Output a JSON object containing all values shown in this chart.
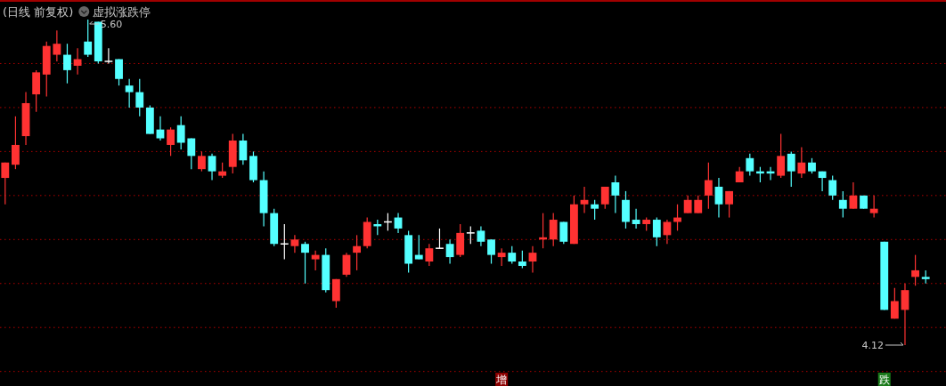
{
  "chart_data": {
    "type": "candlestick",
    "title": "(日线 前复权)",
    "subtitle": "虚拟涨跌停",
    "categories": [
      null,
      null,
      null,
      null,
      null,
      null,
      null,
      null,
      null,
      null,
      null,
      null,
      null,
      null,
      null,
      null,
      null,
      null,
      null,
      null,
      null,
      null,
      null,
      null,
      null,
      null,
      null,
      null,
      null,
      null,
      null,
      null,
      null,
      null,
      null,
      null,
      null,
      null,
      null,
      null,
      null,
      null,
      null,
      null,
      null,
      null,
      null,
      null,
      null,
      null,
      null,
      null,
      null,
      null,
      null,
      null,
      null,
      null,
      null,
      null,
      null,
      null,
      null,
      null,
      null,
      null,
      null,
      null,
      null,
      null,
      null,
      null,
      null,
      null,
      null,
      null,
      null,
      null,
      null,
      null,
      null,
      null,
      null,
      null,
      null,
      null,
      null,
      null,
      null,
      null
    ],
    "ohlc": [
      [
        4.88,
        4.95,
        4.76,
        4.95
      ],
      [
        4.94,
        5.16,
        4.92,
        5.03
      ],
      [
        5.07,
        5.27,
        5.03,
        5.22
      ],
      [
        5.26,
        5.37,
        5.18,
        5.36
      ],
      [
        5.35,
        5.5,
        5.25,
        5.48
      ],
      [
        5.44,
        5.55,
        5.41,
        5.49
      ],
      [
        5.44,
        5.49,
        5.31,
        5.37
      ],
      [
        5.39,
        5.47,
        5.35,
        5.42
      ],
      [
        5.5,
        5.6,
        5.43,
        5.44
      ],
      [
        5.59,
        5.59,
        5.4,
        5.41
      ],
      [
        5.41,
        5.47,
        5.4,
        5.41
      ],
      [
        5.42,
        5.42,
        5.3,
        5.33
      ],
      [
        5.3,
        5.33,
        5.2,
        5.27
      ],
      [
        5.27,
        5.33,
        5.16,
        5.2
      ],
      [
        5.2,
        5.21,
        5.08,
        5.08
      ],
      [
        5.1,
        5.16,
        5.05,
        5.06
      ],
      [
        5.03,
        5.11,
        4.98,
        5.1
      ],
      [
        5.12,
        5.16,
        5.01,
        5.04
      ],
      [
        5.06,
        5.06,
        4.92,
        4.98
      ],
      [
        4.92,
        5.0,
        4.91,
        4.98
      ],
      [
        4.98,
        4.99,
        4.87,
        4.91
      ],
      [
        4.89,
        4.95,
        4.88,
        4.91
      ],
      [
        4.93,
        5.08,
        4.9,
        5.05
      ],
      [
        5.05,
        5.08,
        4.94,
        4.96
      ],
      [
        4.98,
        5.0,
        4.86,
        4.87
      ],
      [
        4.87,
        4.91,
        4.66,
        4.72
      ],
      [
        4.72,
        4.74,
        4.57,
        4.58
      ],
      [
        4.58,
        4.67,
        4.51,
        4.58
      ],
      [
        4.57,
        4.62,
        4.54,
        4.6
      ],
      [
        4.58,
        4.59,
        4.4,
        4.54
      ],
      [
        4.51,
        4.55,
        4.46,
        4.53
      ],
      [
        4.53,
        4.56,
        4.36,
        4.37
      ],
      [
        4.32,
        4.42,
        4.29,
        4.42
      ],
      [
        4.44,
        4.54,
        4.43,
        4.53
      ],
      [
        4.54,
        4.62,
        4.46,
        4.57
      ],
      [
        4.57,
        4.7,
        4.56,
        4.68
      ],
      [
        4.67,
        4.69,
        4.62,
        4.66
      ],
      [
        4.68,
        4.72,
        4.64,
        4.68
      ],
      [
        4.7,
        4.72,
        4.63,
        4.65
      ],
      [
        4.62,
        4.64,
        4.45,
        4.49
      ],
      [
        4.53,
        4.62,
        4.51,
        4.51
      ],
      [
        4.5,
        4.58,
        4.48,
        4.56
      ],
      [
        4.56,
        4.65,
        4.56,
        4.56
      ],
      [
        4.58,
        4.6,
        4.49,
        4.52
      ],
      [
        4.53,
        4.67,
        4.52,
        4.63
      ],
      [
        4.63,
        4.66,
        4.58,
        4.63
      ],
      [
        4.64,
        4.66,
        4.57,
        4.59
      ],
      [
        4.6,
        4.6,
        4.49,
        4.53
      ],
      [
        4.52,
        4.56,
        4.48,
        4.54
      ],
      [
        4.54,
        4.57,
        4.49,
        4.5
      ],
      [
        4.5,
        4.55,
        4.47,
        4.48
      ],
      [
        4.5,
        4.57,
        4.45,
        4.54
      ],
      [
        4.6,
        4.72,
        4.56,
        4.61
      ],
      [
        4.6,
        4.72,
        4.57,
        4.69
      ],
      [
        4.68,
        4.68,
        4.58,
        4.59
      ],
      [
        4.58,
        4.8,
        4.58,
        4.76
      ],
      [
        4.76,
        4.84,
        4.72,
        4.78
      ],
      [
        4.76,
        4.78,
        4.69,
        4.74
      ],
      [
        4.76,
        4.84,
        4.74,
        4.84
      ],
      [
        4.86,
        4.89,
        4.72,
        4.8
      ],
      [
        4.78,
        4.82,
        4.65,
        4.68
      ],
      [
        4.69,
        4.74,
        4.65,
        4.67
      ],
      [
        4.67,
        4.7,
        4.64,
        4.69
      ],
      [
        4.69,
        4.7,
        4.57,
        4.61
      ],
      [
        4.62,
        4.69,
        4.58,
        4.68
      ],
      [
        4.68,
        4.76,
        4.64,
        4.7
      ],
      [
        4.72,
        4.8,
        4.72,
        4.78
      ],
      [
        4.72,
        4.8,
        4.72,
        4.78
      ],
      [
        4.8,
        4.95,
        4.74,
        4.87
      ],
      [
        4.84,
        4.88,
        4.7,
        4.76
      ],
      [
        4.76,
        4.82,
        4.7,
        4.82
      ],
      [
        4.86,
        4.93,
        4.86,
        4.91
      ],
      [
        4.97,
        4.99,
        4.89,
        4.91
      ],
      [
        4.91,
        4.93,
        4.86,
        4.9
      ],
      [
        4.91,
        4.93,
        4.87,
        4.9
      ],
      [
        4.89,
        5.08,
        4.88,
        4.98
      ],
      [
        4.99,
        5.0,
        4.84,
        4.91
      ],
      [
        4.9,
        5.02,
        4.88,
        4.95
      ],
      [
        4.95,
        4.97,
        4.9,
        4.91
      ],
      [
        4.91,
        4.91,
        4.82,
        4.88
      ],
      [
        4.87,
        4.89,
        4.78,
        4.8
      ],
      [
        4.78,
        4.82,
        4.7,
        4.74
      ],
      [
        4.74,
        4.86,
        4.74,
        4.8
      ],
      [
        4.8,
        4.8,
        4.74,
        4.74
      ],
      [
        4.72,
        4.8,
        4.7,
        4.74
      ],
      [
        4.59,
        4.59,
        4.28,
        4.28
      ],
      [
        4.24,
        4.38,
        4.24,
        4.32
      ],
      [
        4.28,
        4.4,
        4.12,
        4.37
      ],
      [
        4.43,
        4.53,
        4.39,
        4.46
      ],
      [
        4.43,
        4.46,
        4.4,
        4.42
      ]
    ],
    "colors": [
      "#ff3232",
      "#ff3232",
      "#ff3232",
      "#ff3232",
      "#ff3232",
      "#ff3232",
      "#54ffff",
      "#ff3232",
      "#54ffff",
      "#54ffff",
      "#ffffff",
      "#54ffff",
      "#54ffff",
      "#54ffff",
      "#54ffff",
      "#54ffff",
      "#ff3232",
      "#54ffff",
      "#54ffff",
      "#ff3232",
      "#54ffff",
      "#ff3232",
      "#ff3232",
      "#54ffff",
      "#54ffff",
      "#54ffff",
      "#54ffff",
      "#ffffff",
      "#ff3232",
      "#54ffff",
      "#ff3232",
      "#54ffff",
      "#ff3232",
      "#ff3232",
      "#ff3232",
      "#ff3232",
      "#54ffff",
      "#ffffff",
      "#54ffff",
      "#54ffff",
      "#54ffff",
      "#ff3232",
      "#ffffff",
      "#54ffff",
      "#ff3232",
      "#ffffff",
      "#54ffff",
      "#54ffff",
      "#ff3232",
      "#54ffff",
      "#54ffff",
      "#ff3232",
      "#ff3232",
      "#ff3232",
      "#54ffff",
      "#ff3232",
      "#ff3232",
      "#54ffff",
      "#ff3232",
      "#54ffff",
      "#54ffff",
      "#54ffff",
      "#ff3232",
      "#54ffff",
      "#ff3232",
      "#ff3232",
      "#ff3232",
      "#ff3232",
      "#ff3232",
      "#54ffff",
      "#ff3232",
      "#ff3232",
      "#54ffff",
      "#54ffff",
      "#54ffff",
      "#ff3232",
      "#54ffff",
      "#ff3232",
      "#54ffff",
      "#54ffff",
      "#54ffff",
      "#54ffff",
      "#ff3232",
      "#54ffff",
      "#ff3232",
      "#54ffff",
      "#ff3232",
      "#ff3232",
      "#ff3232",
      "#54ffff"
    ],
    "yticks": [
      {
        "value": 5.4,
        "label": null
      },
      {
        "value": 5.2,
        "label": null
      },
      {
        "value": 5.0,
        "label": null
      },
      {
        "value": 4.8,
        "label": null
      },
      {
        "value": 4.6,
        "label": null
      },
      {
        "value": 4.4,
        "label": null
      },
      {
        "value": 4.2,
        "label": null
      },
      {
        "value": 4.0,
        "label": null
      }
    ],
    "grid": "y",
    "annotations": [
      "5.60",
      "4.12",
      "增",
      "跌"
    ]
  }
}
